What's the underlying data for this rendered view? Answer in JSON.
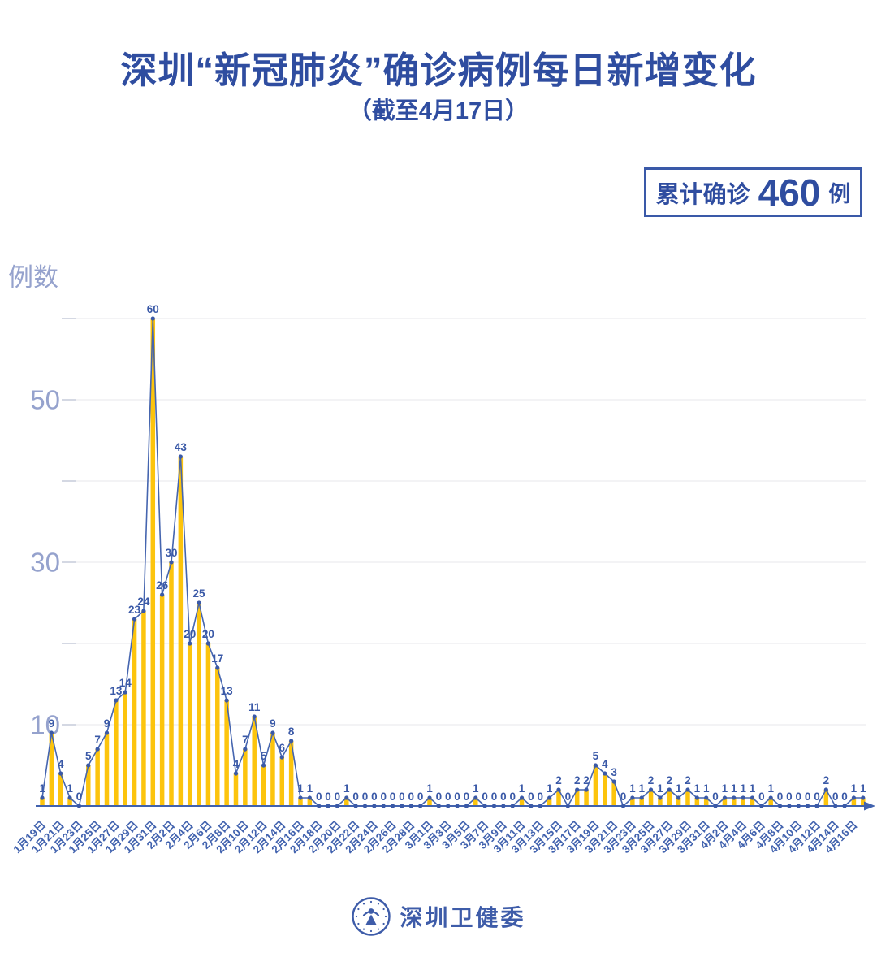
{
  "title": "深圳“新冠肺炎”确诊病例每日新增变化",
  "subtitle": "（截至4月17日）",
  "badge": {
    "prefix": "累计确诊",
    "value": "460",
    "suffix": "例"
  },
  "footer": {
    "org": "深圳卫健委"
  },
  "colors": {
    "primary_blue": "#2F4DA0",
    "line_blue": "#4565AF",
    "dot_blue": "#3A59A7",
    "value_label_blue": "#3A59A7",
    "tick_label_blue": "#4162AE",
    "axis_blue": "#4162AE",
    "bar_yellow": "#FCC40D",
    "muted_axis_label": "#95A2CD",
    "gridline": "#ECECEF",
    "gridline_stub": "#D4D8E3",
    "badge_border": "#3A59A8"
  },
  "chart_data": {
    "type": "bar",
    "overlay": "line-with-markers",
    "title": "深圳“新冠肺炎”确诊病例每日新增变化",
    "subtitle": "（截至4月17日）",
    "ylabel": "例数",
    "xlabel": "",
    "ylim": [
      0,
      63
    ],
    "grid": true,
    "gridline_values": [
      10,
      20,
      30,
      40,
      50,
      60
    ],
    "y_tick_labels": [
      50,
      30,
      10
    ],
    "x_tick_every": 2,
    "show_value_labels": true,
    "cumulative_total": 460,
    "categories": [
      "1月19日",
      "1月20日",
      "1月21日",
      "1月22日",
      "1月23日",
      "1月24日",
      "1月25日",
      "1月26日",
      "1月27日",
      "1月28日",
      "1月29日",
      "1月30日",
      "1月31日",
      "2月1日",
      "2月2日",
      "2月3日",
      "2月4日",
      "2月5日",
      "2月6日",
      "2月7日",
      "2月8日",
      "2月9日",
      "2月10日",
      "2月11日",
      "2月12日",
      "2月13日",
      "2月14日",
      "2月15日",
      "2月16日",
      "2月17日",
      "2月18日",
      "2月19日",
      "2月20日",
      "2月21日",
      "2月22日",
      "2月23日",
      "2月24日",
      "2月25日",
      "2月26日",
      "2月27日",
      "2月28日",
      "2月29日",
      "3月1日",
      "3月2日",
      "3月3日",
      "3月4日",
      "3月5日",
      "3月6日",
      "3月7日",
      "3月8日",
      "3月9日",
      "3月10日",
      "3月11日",
      "3月12日",
      "3月13日",
      "3月14日",
      "3月15日",
      "3月16日",
      "3月17日",
      "3月18日",
      "3月19日",
      "3月20日",
      "3月21日",
      "3月22日",
      "3月23日",
      "3月24日",
      "3月25日",
      "3月26日",
      "3月27日",
      "3月28日",
      "3月29日",
      "3月30日",
      "3月31日",
      "4月1日",
      "4月2日",
      "4月3日",
      "4月4日",
      "4月5日",
      "4月6日",
      "4月7日",
      "4月8日",
      "4月9日",
      "4月10日",
      "4月11日",
      "4月12日",
      "4月13日",
      "4月14日",
      "4月15日",
      "4月16日",
      "4月17日"
    ],
    "values": [
      1,
      9,
      4,
      1,
      0,
      5,
      7,
      9,
      13,
      14,
      23,
      24,
      60,
      26,
      30,
      43,
      20,
      25,
      20,
      17,
      13,
      4,
      7,
      11,
      5,
      9,
      6,
      8,
      1,
      1,
      0,
      0,
      0,
      1,
      0,
      0,
      0,
      0,
      0,
      0,
      0,
      0,
      1,
      0,
      0,
      0,
      0,
      1,
      0,
      0,
      0,
      0,
      1,
      0,
      0,
      1,
      2,
      0,
      2,
      2,
      5,
      4,
      3,
      0,
      1,
      1,
      2,
      1,
      2,
      1,
      2,
      1,
      1,
      0,
      1,
      1,
      1,
      1,
      0,
      1,
      0,
      0,
      0,
      0,
      0,
      2,
      0,
      0,
      1,
      1
    ]
  }
}
